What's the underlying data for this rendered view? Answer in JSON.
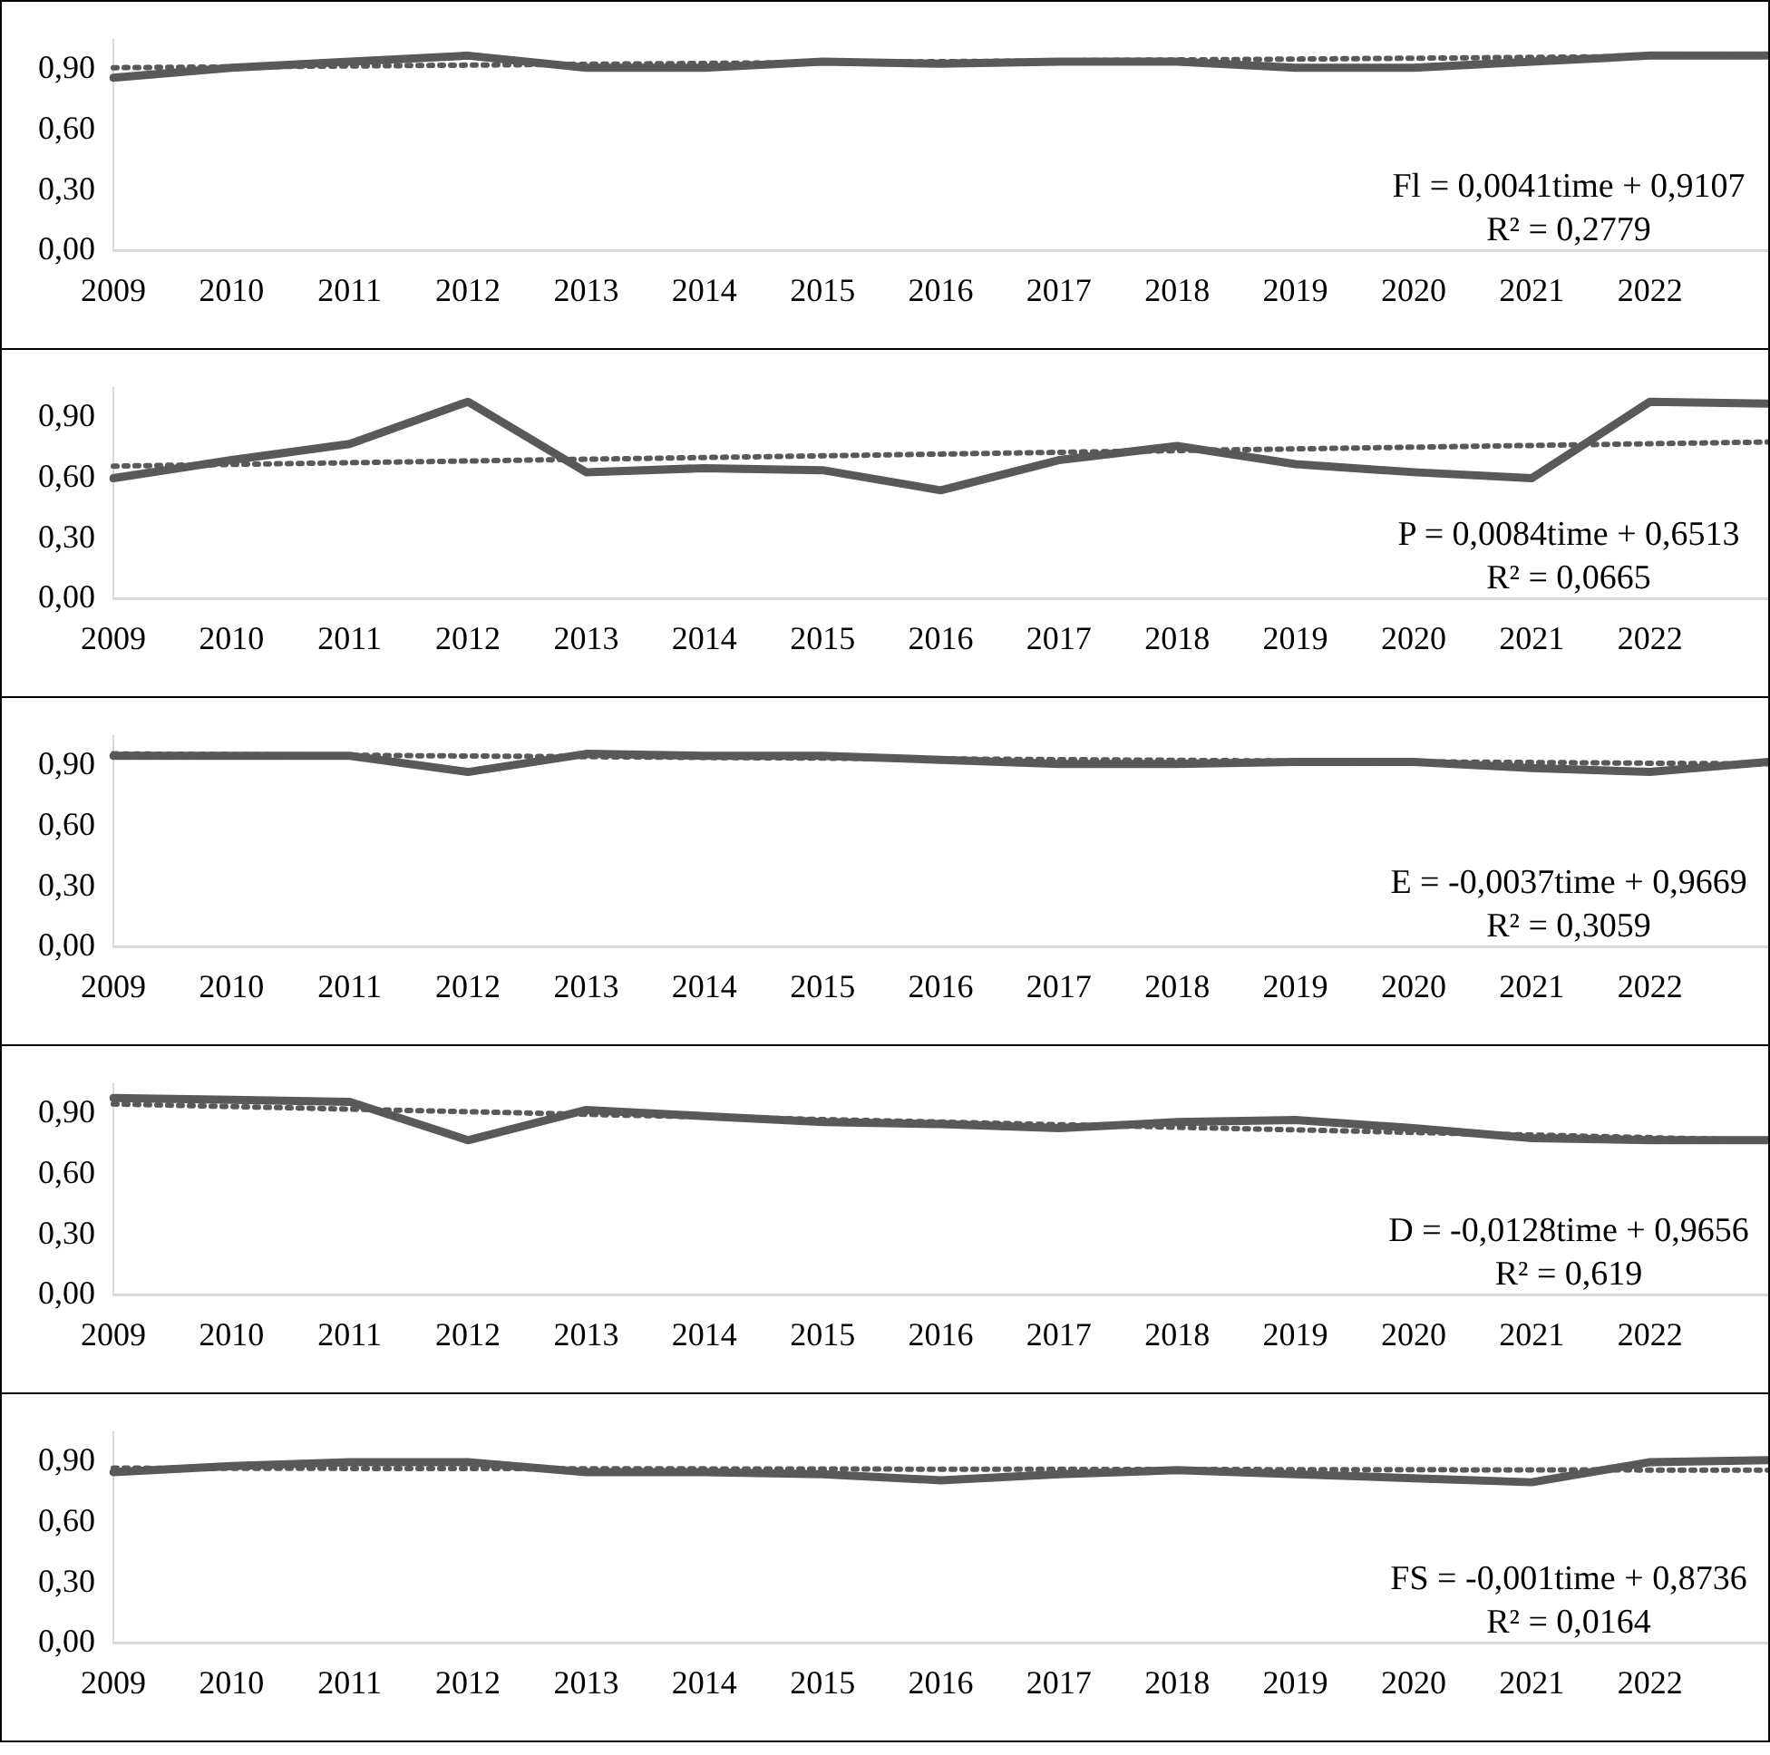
{
  "chart_data": [
    {
      "type": "line",
      "categories": [
        "2009",
        "2010",
        "2011",
        "2012",
        "2013",
        "2014",
        "2015",
        "2016",
        "2017",
        "2018",
        "2019",
        "2020",
        "2021",
        "2022",
        null
      ],
      "ylim": [
        0,
        1.05
      ],
      "yticks": [
        {
          "value": 0,
          "label": "0,00"
        },
        {
          "value": 0.3,
          "label": "0,30"
        },
        {
          "value": 0.6,
          "label": "0,60"
        },
        {
          "value": 0.9,
          "label": "0,90"
        }
      ],
      "grid": false,
      "legend": false,
      "line_style": "solid",
      "marker": "none",
      "series": [
        {
          "color": "#595959",
          "values": [
            0.86,
            0.91,
            0.94,
            0.97,
            0.91,
            0.91,
            0.94,
            0.93,
            0.94,
            0.94,
            0.91,
            0.91,
            0.94,
            0.97,
            0.97
          ]
        },
        {
          "type": "line",
          "line_style": "dotted",
          "color": "#595959",
          "values": [
            0.91,
            null,
            null,
            null,
            null,
            null,
            null,
            null,
            null,
            null,
            null,
            null,
            null,
            null,
            0.97
          ]
        }
      ],
      "annotations": [
        "Fl = 0,0041time + 0,9107",
        "R² = 0,2779"
      ]
    },
    {
      "type": "line",
      "categories": [
        "2009",
        "2010",
        "2011",
        "2012",
        "2013",
        "2014",
        "2015",
        "2016",
        "2017",
        "2018",
        "2019",
        "2020",
        "2021",
        "2022",
        null
      ],
      "ylim": [
        0,
        1.05
      ],
      "yticks": [
        {
          "value": 0,
          "label": "0,00"
        },
        {
          "value": 0.3,
          "label": "0,30"
        },
        {
          "value": 0.6,
          "label": "0,60"
        },
        {
          "value": 0.9,
          "label": "0,90"
        }
      ],
      "grid": false,
      "legend": false,
      "line_style": "solid",
      "marker": "none",
      "series": [
        {
          "color": "#595959",
          "values": [
            0.6,
            0.69,
            0.77,
            0.98,
            0.63,
            0.65,
            0.64,
            0.54,
            0.69,
            0.76,
            0.67,
            0.63,
            0.6,
            0.98,
            0.97
          ]
        },
        {
          "type": "line",
          "line_style": "dotted",
          "color": "#595959",
          "values": [
            0.66,
            null,
            null,
            null,
            null,
            null,
            null,
            null,
            null,
            null,
            null,
            null,
            null,
            null,
            0.78
          ]
        }
      ],
      "annotations": [
        "P = 0,0084time + 0,6513",
        "R² = 0,0665"
      ]
    },
    {
      "type": "line",
      "categories": [
        "2009",
        "2010",
        "2011",
        "2012",
        "2013",
        "2014",
        "2015",
        "2016",
        "2017",
        "2018",
        "2019",
        "2020",
        "2021",
        "2022",
        null
      ],
      "ylim": [
        0,
        1.05
      ],
      "yticks": [
        {
          "value": 0,
          "label": "0,00"
        },
        {
          "value": 0.3,
          "label": "0,30"
        },
        {
          "value": 0.6,
          "label": "0,60"
        },
        {
          "value": 0.9,
          "label": "0,90"
        }
      ],
      "grid": false,
      "legend": false,
      "line_style": "solid",
      "marker": "none",
      "series": [
        {
          "color": "#595959",
          "values": [
            0.95,
            0.95,
            0.95,
            0.87,
            0.96,
            0.95,
            0.95,
            0.93,
            0.91,
            0.91,
            0.92,
            0.92,
            0.89,
            0.87,
            0.92
          ]
        },
        {
          "type": "line",
          "line_style": "dotted",
          "color": "#595959",
          "values": [
            0.96,
            null,
            null,
            null,
            null,
            null,
            null,
            null,
            null,
            null,
            null,
            null,
            null,
            null,
            0.91
          ]
        }
      ],
      "annotations": [
        "E = -0,0037time + 0,9669",
        "R² = 0,3059"
      ]
    },
    {
      "type": "line",
      "categories": [
        "2009",
        "2010",
        "2011",
        "2012",
        "2013",
        "2014",
        "2015",
        "2016",
        "2017",
        "2018",
        "2019",
        "2020",
        "2021",
        "2022",
        null
      ],
      "ylim": [
        0,
        1.05
      ],
      "yticks": [
        {
          "value": 0,
          "label": "0,00"
        },
        {
          "value": 0.3,
          "label": "0,30"
        },
        {
          "value": 0.6,
          "label": "0,60"
        },
        {
          "value": 0.9,
          "label": "0,90"
        }
      ],
      "grid": false,
      "legend": false,
      "line_style": "solid",
      "marker": "none",
      "series": [
        {
          "color": "#595959",
          "values": [
            0.98,
            0.97,
            0.96,
            0.77,
            0.92,
            0.89,
            0.86,
            0.85,
            0.83,
            0.86,
            0.87,
            0.83,
            0.78,
            0.77,
            0.77
          ]
        },
        {
          "type": "line",
          "line_style": "dotted",
          "color": "#595959",
          "values": [
            0.95,
            null,
            null,
            null,
            null,
            null,
            null,
            null,
            null,
            null,
            null,
            null,
            null,
            null,
            0.77
          ]
        }
      ],
      "annotations": [
        "D = -0,0128time + 0,9656",
        "R² = 0,619"
      ]
    },
    {
      "type": "line",
      "categories": [
        "2009",
        "2010",
        "2011",
        "2012",
        "2013",
        "2014",
        "2015",
        "2016",
        "2017",
        "2018",
        "2019",
        "2020",
        "2021",
        "2022",
        null
      ],
      "ylim": [
        0,
        1.05
      ],
      "yticks": [
        {
          "value": 0,
          "label": "0,00"
        },
        {
          "value": 0.3,
          "label": "0,30"
        },
        {
          "value": 0.6,
          "label": "0,60"
        },
        {
          "value": 0.9,
          "label": "0,90"
        }
      ],
      "grid": false,
      "legend": false,
      "line_style": "solid",
      "marker": "none",
      "series": [
        {
          "color": "#595959",
          "values": [
            0.85,
            0.88,
            0.9,
            0.9,
            0.85,
            0.85,
            0.84,
            0.81,
            0.84,
            0.86,
            0.84,
            0.82,
            0.8,
            0.9,
            0.91
          ]
        },
        {
          "type": "line",
          "line_style": "dotted",
          "color": "#595959",
          "values": [
            0.87,
            null,
            null,
            null,
            null,
            null,
            null,
            null,
            null,
            null,
            null,
            null,
            null,
            null,
            0.86
          ]
        }
      ],
      "annotations": [
        "FS = -0,001time + 0,8736",
        "R² = 0,0164"
      ]
    }
  ]
}
